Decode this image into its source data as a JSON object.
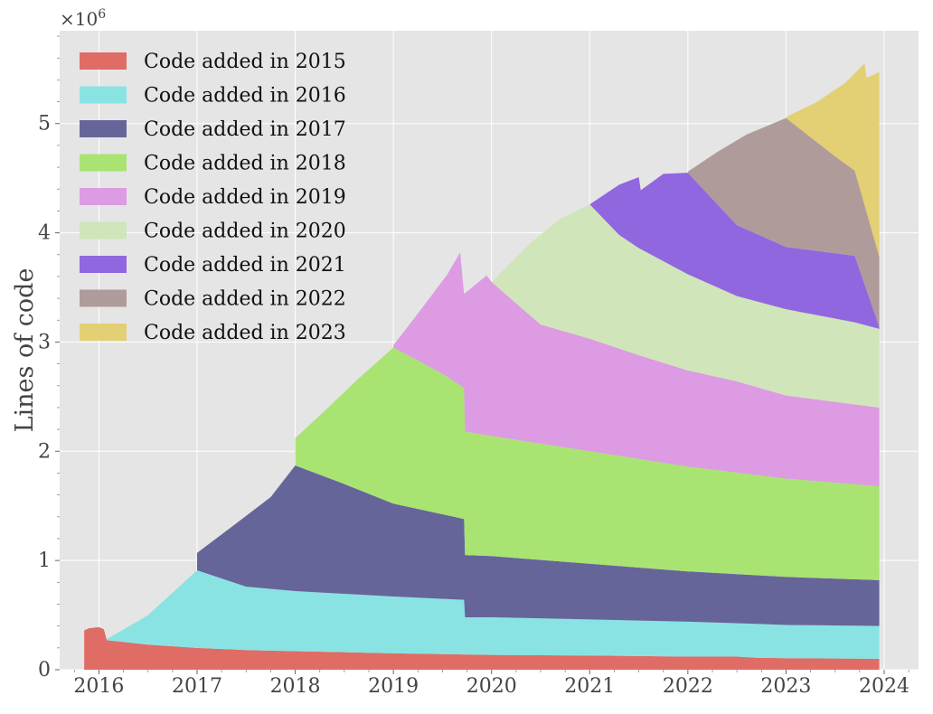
{
  "chart_data": {
    "type": "area",
    "stacked": true,
    "title": "",
    "xlabel": "",
    "ylabel": "Lines of code",
    "y_multiplier_label": "×10",
    "y_multiplier_exponent": "6",
    "xlim": [
      2015.6,
      2024.35
    ],
    "ylim": [
      0,
      5.85
    ],
    "x_tick_values": [
      2016,
      2017,
      2018,
      2019,
      2020,
      2021,
      2022,
      2023,
      2024
    ],
    "x_tick_labels": [
      "2016",
      "2017",
      "2018",
      "2019",
      "2020",
      "2021",
      "2022",
      "2023",
      "2024"
    ],
    "y_tick_values": [
      0,
      1,
      2,
      3,
      4,
      5
    ],
    "y_tick_labels": [
      "0",
      "1",
      "2",
      "3",
      "4",
      "5"
    ],
    "grid": true,
    "legend_position": "upper-left",
    "colors": {
      "plot_background": "#e5e5e5",
      "grid": "#ffffff",
      "text": "#444444"
    },
    "series": [
      {
        "name": "Code added in 2015",
        "color": "#e06c66",
        "points": [
          [
            2015.85,
            0.36
          ],
          [
            2015.9,
            0.38
          ],
          [
            2016.0,
            0.39
          ],
          [
            2016.05,
            0.37
          ],
          [
            2016.08,
            0.27
          ],
          [
            2016.5,
            0.23
          ],
          [
            2017.0,
            0.2
          ],
          [
            2017.5,
            0.18
          ],
          [
            2018.0,
            0.17
          ],
          [
            2019.0,
            0.15
          ],
          [
            2019.72,
            0.14
          ],
          [
            2020.0,
            0.135
          ],
          [
            2021.0,
            0.13
          ],
          [
            2022.0,
            0.12
          ],
          [
            2022.5,
            0.12
          ],
          [
            2022.7,
            0.11
          ],
          [
            2023.0,
            0.105
          ],
          [
            2023.95,
            0.1
          ]
        ]
      },
      {
        "name": "Code added in 2016",
        "color": "#8ae3e3",
        "points": [
          [
            2016.08,
            0.28
          ],
          [
            2016.5,
            0.5
          ],
          [
            2017.0,
            0.91
          ],
          [
            2017.1,
            0.88
          ],
          [
            2017.5,
            0.76
          ],
          [
            2018.0,
            0.72
          ],
          [
            2019.0,
            0.67
          ],
          [
            2019.72,
            0.64
          ],
          [
            2019.73,
            0.48
          ],
          [
            2020.0,
            0.48
          ],
          [
            2021.0,
            0.46
          ],
          [
            2022.0,
            0.44
          ],
          [
            2022.7,
            0.42
          ],
          [
            2023.0,
            0.41
          ],
          [
            2023.95,
            0.4
          ]
        ]
      },
      {
        "name": "Code added in 2017",
        "color": "#66659a",
        "points": [
          [
            2017.0,
            1.07
          ],
          [
            2017.4,
            1.34
          ],
          [
            2017.75,
            1.58
          ],
          [
            2018.0,
            1.87
          ],
          [
            2018.5,
            1.7
          ],
          [
            2019.0,
            1.52
          ],
          [
            2019.72,
            1.38
          ],
          [
            2019.73,
            1.05
          ],
          [
            2020.0,
            1.04
          ],
          [
            2021.0,
            0.97
          ],
          [
            2022.0,
            0.9
          ],
          [
            2023.0,
            0.85
          ],
          [
            2023.95,
            0.82
          ]
        ]
      },
      {
        "name": "Code added in 2018",
        "color": "#a9e372",
        "points": [
          [
            2018.0,
            2.12
          ],
          [
            2018.3,
            2.37
          ],
          [
            2018.65,
            2.67
          ],
          [
            2019.0,
            2.95
          ],
          [
            2019.5,
            2.71
          ],
          [
            2019.72,
            2.58
          ],
          [
            2019.73,
            2.18
          ],
          [
            2020.0,
            2.14
          ],
          [
            2021.0,
            2.0
          ],
          [
            2022.0,
            1.86
          ],
          [
            2023.0,
            1.75
          ],
          [
            2023.95,
            1.68
          ]
        ]
      },
      {
        "name": "Code added in 2019",
        "color": "#dc9be2",
        "points": [
          [
            2019.0,
            2.97
          ],
          [
            2019.3,
            3.32
          ],
          [
            2019.55,
            3.62
          ],
          [
            2019.68,
            3.82
          ],
          [
            2019.72,
            3.44
          ],
          [
            2019.95,
            3.61
          ],
          [
            2020.0,
            3.55
          ],
          [
            2020.5,
            3.16
          ],
          [
            2021.0,
            3.03
          ],
          [
            2021.5,
            2.88
          ],
          [
            2022.0,
            2.74
          ],
          [
            2022.5,
            2.64
          ],
          [
            2023.0,
            2.51
          ],
          [
            2023.95,
            2.4
          ]
        ]
      },
      {
        "name": "Code added in 2020",
        "color": "#d1e5ba",
        "points": [
          [
            2020.0,
            3.55
          ],
          [
            2020.4,
            3.91
          ],
          [
            2020.7,
            4.13
          ],
          [
            2021.0,
            4.26
          ],
          [
            2021.3,
            3.98
          ],
          [
            2021.5,
            3.86
          ],
          [
            2022.0,
            3.62
          ],
          [
            2022.5,
            3.42
          ],
          [
            2023.0,
            3.3
          ],
          [
            2023.7,
            3.18
          ],
          [
            2023.95,
            3.12
          ]
        ]
      },
      {
        "name": "Code added in 2021",
        "color": "#9167e0",
        "points": [
          [
            2021.0,
            4.26
          ],
          [
            2021.3,
            4.44
          ],
          [
            2021.5,
            4.51
          ],
          [
            2021.52,
            4.39
          ],
          [
            2021.75,
            4.54
          ],
          [
            2022.0,
            4.55
          ],
          [
            2022.5,
            4.07
          ],
          [
            2023.0,
            3.87
          ],
          [
            2023.7,
            3.79
          ],
          [
            2023.95,
            3.14
          ]
        ]
      },
      {
        "name": "Code added in 2022",
        "color": "#b09b9b",
        "points": [
          [
            2022.0,
            4.56
          ],
          [
            2022.3,
            4.74
          ],
          [
            2022.6,
            4.9
          ],
          [
            2023.0,
            5.05
          ],
          [
            2023.2,
            4.91
          ],
          [
            2023.5,
            4.7
          ],
          [
            2023.7,
            4.57
          ],
          [
            2023.95,
            3.78
          ]
        ]
      },
      {
        "name": "Code added in 2023",
        "color": "#e3cf74",
        "points": [
          [
            2023.0,
            5.06
          ],
          [
            2023.3,
            5.19
          ],
          [
            2023.6,
            5.37
          ],
          [
            2023.8,
            5.55
          ],
          [
            2023.82,
            5.42
          ],
          [
            2023.95,
            5.47
          ]
        ]
      }
    ]
  }
}
